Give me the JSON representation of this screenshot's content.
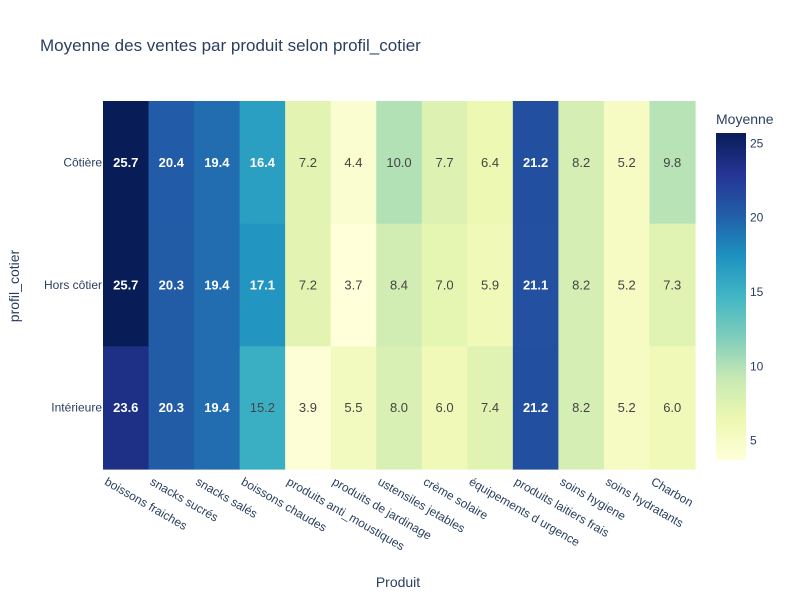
{
  "chart_data": {
    "type": "heatmap",
    "title": "Moyenne des ventes par produit selon profil_cotier",
    "xlabel": "Produit",
    "ylabel": "profil_cotier",
    "x": [
      "boissons fraiches",
      "snacks sucrés",
      "snacks salés",
      "boissons chaudes",
      "produits anti_moustiques",
      "produits de jardinage",
      "ustensiles jetables",
      "crème solaire",
      "équipements d urgence",
      "produits laitiers frais",
      "soins hygiene",
      "soins hydratants",
      "Charbon"
    ],
    "y": [
      "Côtière",
      "Hors côtier",
      "Intérieure"
    ],
    "z": [
      [
        25.7,
        20.4,
        19.4,
        16.4,
        7.2,
        4.4,
        10.0,
        7.7,
        6.4,
        21.2,
        8.2,
        5.2,
        9.8
      ],
      [
        25.7,
        20.3,
        19.4,
        17.1,
        7.2,
        3.7,
        8.4,
        7.0,
        5.9,
        21.1,
        8.2,
        5.2,
        7.3
      ],
      [
        23.6,
        20.3,
        19.4,
        15.2,
        3.9,
        5.5,
        8.0,
        6.0,
        7.4,
        21.2,
        8.2,
        5.2,
        6.0
      ]
    ],
    "colorscale": "YlGnBu",
    "colorbar": {
      "title": "Moyenne",
      "range": [
        3.7,
        25.7
      ],
      "ticks": [
        5,
        10,
        15,
        20,
        25
      ]
    }
  }
}
